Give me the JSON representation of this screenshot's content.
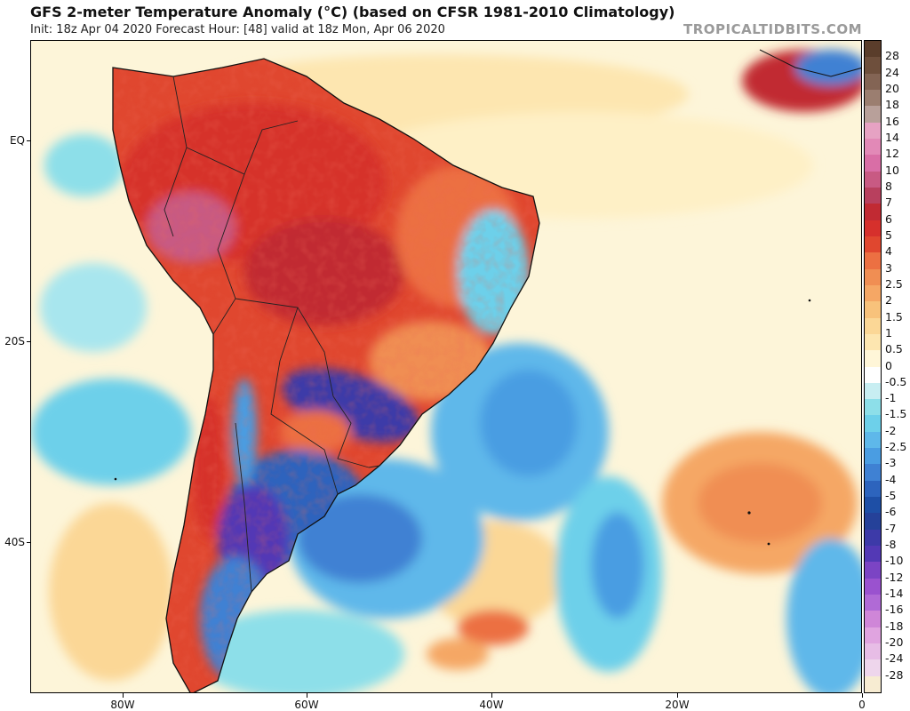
{
  "header": {
    "title": "GFS 2-meter Temperature Anomaly (°C) (based on CFSR 1981-2010 Climatology)",
    "subtitle": "Init: 18z Apr 04 2020   Forecast Hour: [48]   valid at 18z Mon, Apr 06 2020",
    "brand": "TROPICALTIDBITS.COM"
  },
  "axes": {
    "lat_labels": [
      "EQ",
      "20S",
      "40S"
    ],
    "lon_labels": [
      "80W",
      "60W",
      "40W",
      "20W",
      "0"
    ]
  },
  "colorbar": {
    "labels": [
      "28",
      "24",
      "20",
      "18",
      "16",
      "14",
      "12",
      "10",
      "8",
      "7",
      "6",
      "5",
      "4",
      "3",
      "2.5",
      "2",
      "1.5",
      "1",
      "0.5",
      "0",
      "-0.5",
      "-1",
      "-1.5",
      "-2",
      "-2.5",
      "-3",
      "-4",
      "-5",
      "-6",
      "-7",
      "-8",
      "-10",
      "-12",
      "-14",
      "-16",
      "-18",
      "-20",
      "-24",
      "-28"
    ],
    "colors": [
      "#5a3d2b",
      "#6e4f3c",
      "#836454",
      "#9b7e70",
      "#b8a09a",
      "#e6a2c3",
      "#e289b7",
      "#d96ea6",
      "#c85a83",
      "#b8405e",
      "#c12a33",
      "#d6302c",
      "#e0472f",
      "#ec7042",
      "#f08e53",
      "#f5a765",
      "#f8c27b",
      "#fbd796",
      "#fde6b0",
      "#fff6d8",
      "#ffffff",
      "#c8eef2",
      "#8ddfe9",
      "#6dd0ea",
      "#5eb8ea",
      "#4a9de2",
      "#3f81d3",
      "#2d64bd",
      "#1e4fa6",
      "#254199",
      "#3d3aa8",
      "#5339b5",
      "#7b44c4",
      "#9a52cf",
      "#b06ad6",
      "#cf86d8",
      "#e0a4e0",
      "#e7bde6",
      "#eed6ec",
      "#f7ecd2"
    ]
  }
}
